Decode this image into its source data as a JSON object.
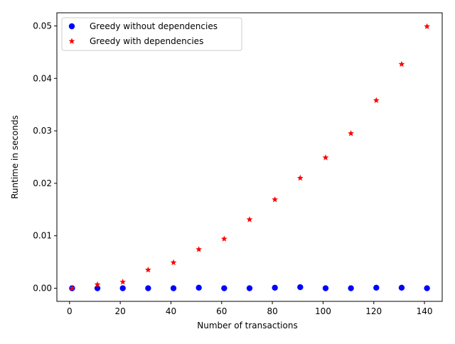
{
  "chart_data": {
    "type": "scatter",
    "title": "",
    "xlabel": "Number of transactions",
    "ylabel": "Runtime in seconds",
    "xlim": [
      -5,
      147
    ],
    "ylim": [
      -0.0025,
      0.0525
    ],
    "x_ticks": [
      0,
      20,
      40,
      60,
      80,
      100,
      120,
      140
    ],
    "x_tick_labels": [
      "0",
      "20",
      "40",
      "60",
      "80",
      "100",
      "120",
      "140"
    ],
    "y_ticks": [
      0.0,
      0.01,
      0.02,
      0.03,
      0.04,
      0.05
    ],
    "y_tick_labels": [
      "0.00",
      "0.01",
      "0.02",
      "0.03",
      "0.04",
      "0.05"
    ],
    "grid": false,
    "legend_position": "top-left",
    "x": [
      1,
      11,
      21,
      31,
      41,
      51,
      61,
      71,
      81,
      91,
      101,
      111,
      121,
      131,
      141
    ],
    "series": [
      {
        "name": "Greedy without dependencies",
        "marker": "circle",
        "color": "#0000ff",
        "values": [
          0.0,
          0.0,
          0.0,
          0.0,
          0.0,
          0.0001,
          0.0,
          0.0,
          0.0001,
          0.0002,
          0.0,
          0.0,
          0.0001,
          0.0001,
          0.0
        ]
      },
      {
        "name": "Greedy with dependencies",
        "marker": "star",
        "color": "#ff0000",
        "values": [
          0.0,
          0.0007,
          0.0012,
          0.0035,
          0.0049,
          0.0074,
          0.0094,
          0.0131,
          0.0169,
          0.021,
          0.0249,
          0.0295,
          0.0358,
          0.0427,
          0.0499
        ]
      }
    ]
  }
}
